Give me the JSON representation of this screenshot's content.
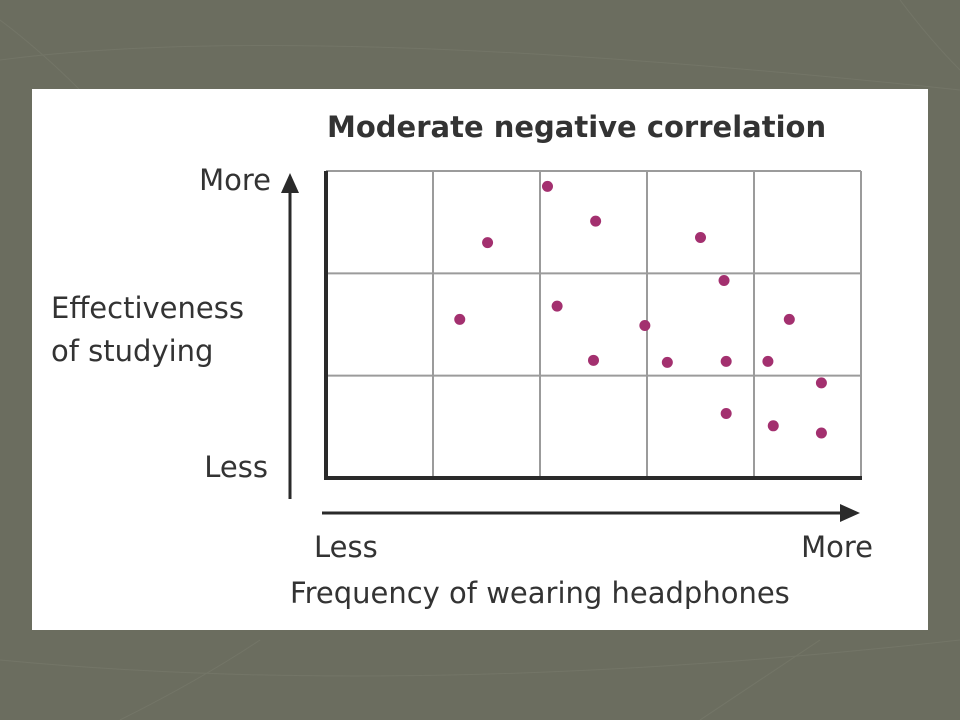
{
  "chart_data": {
    "type": "scatter",
    "title": "Moderate negative correlation",
    "xlabel": "Frequency of wearing headphones",
    "ylabel": "Effectiveness of studying",
    "x_tick_labels": {
      "min": "Less",
      "max": "More"
    },
    "y_tick_labels": {
      "min": "Less",
      "max": "More"
    },
    "xlim": [
      0,
      5
    ],
    "ylim": [
      0,
      3
    ],
    "grid": true,
    "grid_cells": {
      "columns": 5,
      "rows": 3
    },
    "point_color": "#a3306f",
    "points": [
      {
        "x": 2.07,
        "y": 2.85
      },
      {
        "x": 2.52,
        "y": 2.51
      },
      {
        "x": 1.51,
        "y": 2.3
      },
      {
        "x": 3.5,
        "y": 2.35
      },
      {
        "x": 3.72,
        "y": 1.93
      },
      {
        "x": 1.25,
        "y": 1.55
      },
      {
        "x": 2.16,
        "y": 1.68
      },
      {
        "x": 2.98,
        "y": 1.49
      },
      {
        "x": 4.33,
        "y": 1.55
      },
      {
        "x": 2.5,
        "y": 1.15
      },
      {
        "x": 3.19,
        "y": 1.13
      },
      {
        "x": 3.74,
        "y": 1.14
      },
      {
        "x": 4.13,
        "y": 1.14
      },
      {
        "x": 4.63,
        "y": 0.93
      },
      {
        "x": 3.74,
        "y": 0.63
      },
      {
        "x": 4.18,
        "y": 0.51
      },
      {
        "x": 4.63,
        "y": 0.44
      }
    ]
  },
  "colors": {
    "background": "#6b6d5f",
    "panel": "#ffffff",
    "text": "#333333",
    "grid": "#9b9b9b",
    "axis": "#2a2a2a"
  }
}
